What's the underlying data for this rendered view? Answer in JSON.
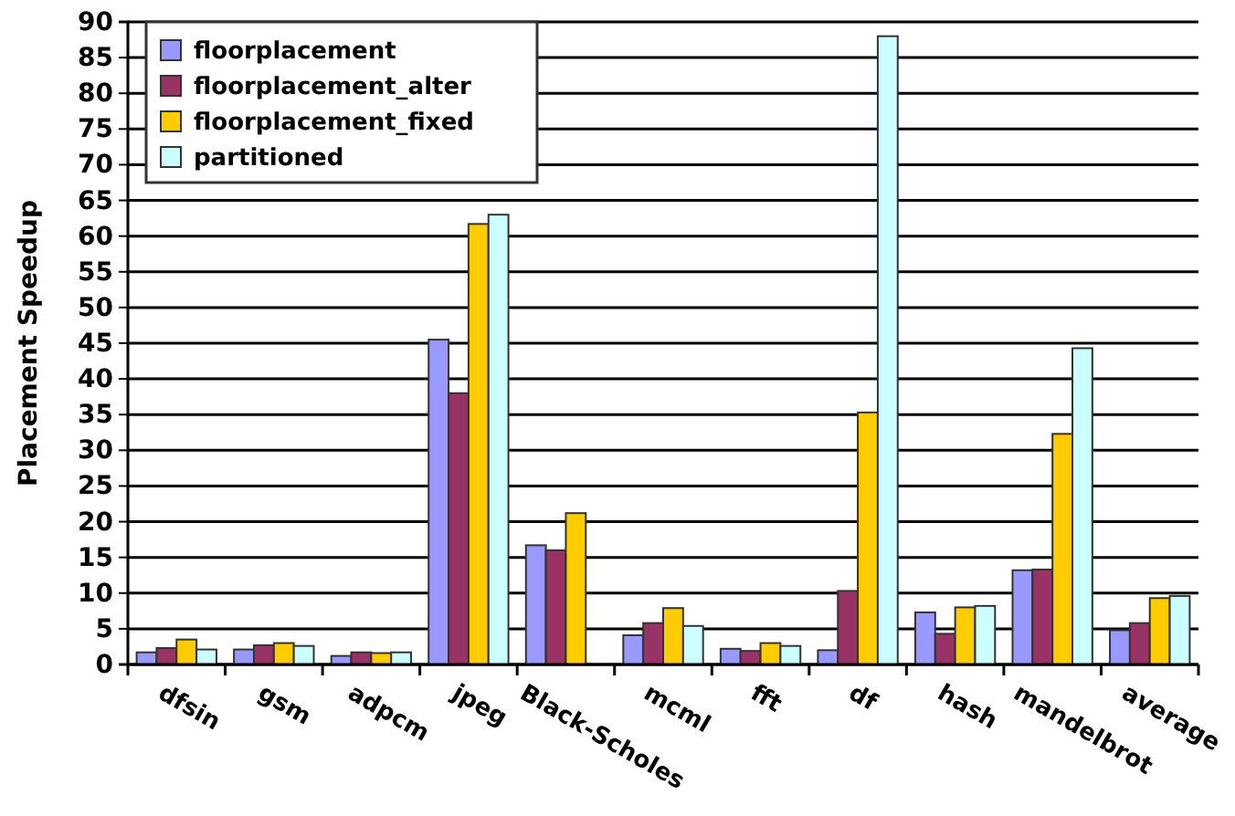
{
  "chart_data": {
    "type": "bar",
    "ylabel": "Placement Speedup",
    "categories": [
      "dfsin",
      "gsm",
      "adpcm",
      "jpeg",
      "Black-Scholes",
      "mcml",
      "fft",
      "df",
      "hash",
      "mandelbrot",
      "average"
    ],
    "series": [
      {
        "name": "floorplacement",
        "color": "#9999ff",
        "values": [
          1.7,
          2.1,
          1.2,
          45.5,
          16.7,
          4.1,
          2.2,
          2.0,
          7.3,
          13.2,
          4.8
        ]
      },
      {
        "name": "floorplacement_alter",
        "color": "#993366",
        "values": [
          2.3,
          2.7,
          1.7,
          38,
          16,
          5.8,
          1.9,
          10.3,
          4.3,
          13.3,
          5.8
        ]
      },
      {
        "name": "floorplacement_fixed",
        "color": "#ffcc00",
        "values": [
          3.5,
          3.0,
          1.6,
          61.7,
          21.2,
          7.9,
          3.0,
          35.3,
          8.0,
          32.3,
          9.3
        ]
      },
      {
        "name": "partitioned",
        "color": "#ccffff",
        "values": [
          2.1,
          2.6,
          1.7,
          63,
          null,
          5.4,
          2.6,
          88,
          8.2,
          44.3,
          9.6
        ]
      }
    ],
    "ylim": [
      0,
      90
    ],
    "yticks": [
      0,
      5,
      10,
      15,
      20,
      25,
      30,
      35,
      40,
      45,
      50,
      55,
      60,
      65,
      70,
      75,
      80,
      85,
      90
    ],
    "grid": "y",
    "legend": "top left"
  }
}
